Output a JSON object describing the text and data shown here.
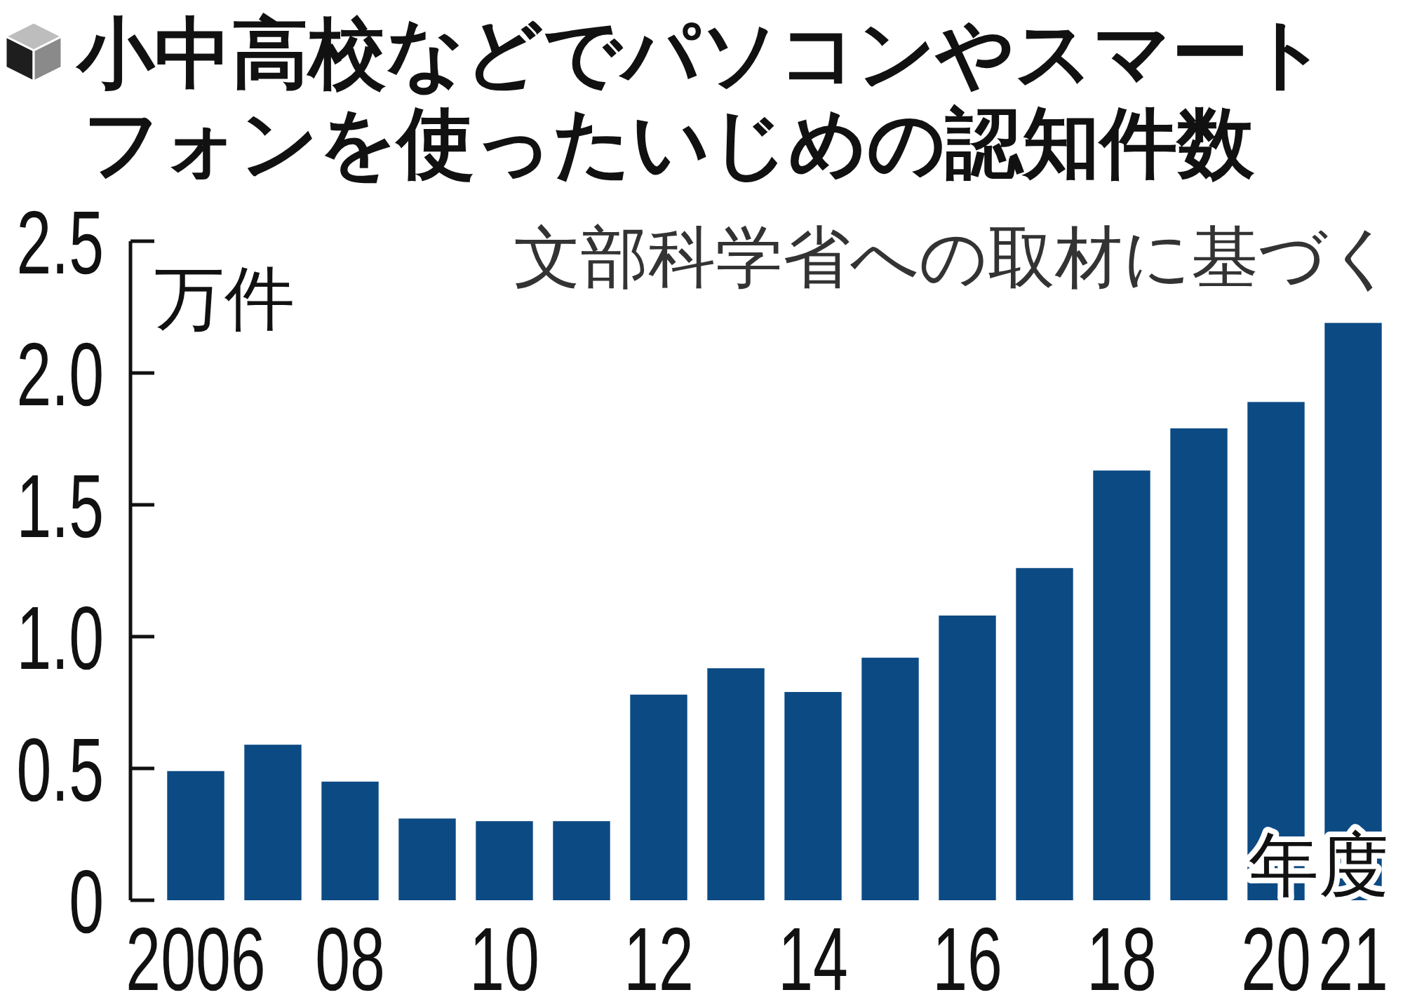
{
  "chart_data": {
    "type": "bar",
    "title": "小中高校などでパソコンやスマートフォンを使ったいじめの認知件数",
    "ylabel": "万件",
    "xlabel": "年度",
    "annotations": [
      "文部科学省への取材に基づく"
    ],
    "categories": [
      "2006",
      null,
      "08",
      null,
      "10",
      null,
      "12",
      null,
      "14",
      null,
      "16",
      null,
      "18",
      null,
      "20",
      "21"
    ],
    "values": [
      0.49,
      0.59,
      0.45,
      0.31,
      0.3,
      0.3,
      0.78,
      0.88,
      0.79,
      0.92,
      1.08,
      1.26,
      1.63,
      1.79,
      1.89,
      2.19
    ],
    "color": "#0c4a84",
    "ylim": [
      0,
      2.5
    ],
    "yticks": [
      0,
      0.5,
      {
        "value": 1,
        "label": "1.0"
      },
      1.5,
      {
        "value": 2,
        "label": "2.0"
      },
      2.5
    ],
    "grid": false
  }
}
